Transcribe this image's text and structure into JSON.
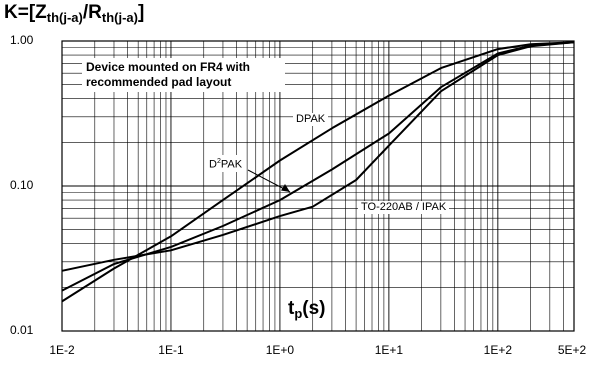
{
  "chart_data": {
    "type": "line",
    "title": "",
    "ylabel": {
      "prefix": "K=[Z",
      "sub1": "th(j-a)",
      "mid": "/R",
      "sub2": "th(j-a)",
      "suffix": "]"
    },
    "xlabel": {
      "main": "t",
      "sub": "p",
      "suffix": "(s)"
    },
    "x_scale": "log",
    "y_scale": "log",
    "xlim": [
      0.01,
      500
    ],
    "ylim": [
      0.01,
      1.0
    ],
    "grid": true,
    "x_ticks": [
      {
        "value": 0.01,
        "label": "1E-2"
      },
      {
        "value": 0.1,
        "label": "1E-1"
      },
      {
        "value": 1,
        "label": "1E+0"
      },
      {
        "value": 10,
        "label": "1E+1"
      },
      {
        "value": 100,
        "label": "1E+2"
      },
      {
        "value": 500,
        "label": "5E+2"
      }
    ],
    "y_ticks": [
      {
        "value": 1.0,
        "label": "1.00"
      },
      {
        "value": 0.1,
        "label": "0.10"
      },
      {
        "value": 0.01,
        "label": "0.01"
      }
    ],
    "annotation": "Device mounted on FR4 with recommended pad layout",
    "series": [
      {
        "name": "DPAK",
        "x": [
          0.01,
          0.03,
          0.1,
          0.3,
          1,
          3,
          10,
          30,
          100,
          200,
          500
        ],
        "y": [
          0.016,
          0.027,
          0.045,
          0.08,
          0.15,
          0.25,
          0.42,
          0.65,
          0.88,
          0.95,
          0.98
        ]
      },
      {
        "name": "D²PAK",
        "name_parts": [
          "D",
          "2",
          "PAK"
        ],
        "x": [
          0.01,
          0.03,
          0.1,
          0.3,
          1,
          3,
          10,
          30,
          100,
          200,
          500
        ],
        "y": [
          0.019,
          0.029,
          0.038,
          0.053,
          0.08,
          0.13,
          0.23,
          0.48,
          0.82,
          0.93,
          0.98
        ]
      },
      {
        "name": "TO-220AB / IPAK",
        "x": [
          0.01,
          0.03,
          0.1,
          0.3,
          1,
          2,
          5,
          10,
          30,
          100,
          200,
          500
        ],
        "y": [
          0.026,
          0.031,
          0.036,
          0.046,
          0.062,
          0.072,
          0.11,
          0.19,
          0.45,
          0.8,
          0.92,
          0.98
        ]
      }
    ]
  }
}
